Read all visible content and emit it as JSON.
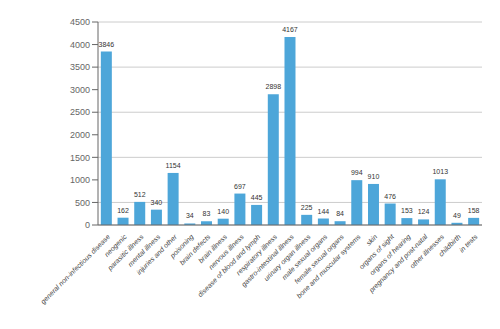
{
  "chart_data": {
    "type": "bar",
    "categories": [
      "general non-infectious disease",
      "neogenic",
      "parasitic illness",
      "mental illness",
      "injuries and other",
      "poisoning",
      "brain defects",
      "brain illness",
      "nervous illness",
      "disease of blood and lymph",
      "respiratory illness",
      "gastro-intestinal illness",
      "urinary organ illness",
      "male sexual organs",
      "female sexual organs",
      "bone and muscular systems",
      "skin",
      "organs of sight",
      "organs of hearing",
      "pregnancy and post-natal",
      "other illnesses",
      "childbirth",
      "in tests"
    ],
    "values": [
      3846,
      162,
      512,
      340,
      1154,
      34,
      83,
      140,
      697,
      445,
      2898,
      4167,
      225,
      144,
      84,
      994,
      910,
      476,
      153,
      124,
      1013,
      49,
      158
    ],
    "color": "#4DA6D9",
    "ylim": [
      0,
      4500
    ],
    "yticks": [
      0,
      500,
      1000,
      1500,
      2000,
      2500,
      3000,
      3500,
      4000,
      4500
    ],
    "grid": true,
    "data_labels": true
  }
}
